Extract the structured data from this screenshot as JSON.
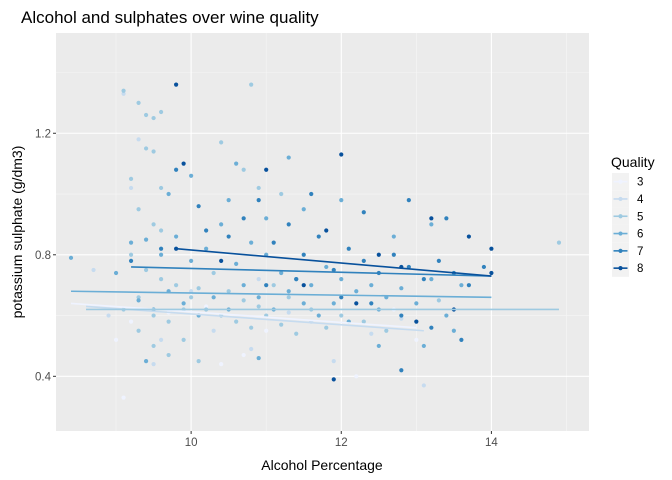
{
  "chart_data": {
    "type": "scatter",
    "title": "Alcohol and sulphates over wine quality",
    "xlabel": "Alcohol Percentage",
    "ylabel": "potassium sulphate (g/dm3)",
    "xlim": [
      8.2,
      15.3
    ],
    "ylim": [
      0.22,
      1.53
    ],
    "x_ticks": [
      10,
      12,
      14
    ],
    "y_ticks": [
      0.4,
      0.8,
      1.2
    ],
    "x_tick_labels": [
      "10",
      "12",
      "14"
    ],
    "y_tick_labels": [
      "0.4",
      "0.8",
      "1.2"
    ],
    "grid": true,
    "panel_background": "#ebebeb",
    "legend": {
      "title": "Quality",
      "position": "right",
      "labels": [
        "3",
        "4",
        "5",
        "6",
        "7",
        "8"
      ]
    },
    "series": [
      {
        "name": "3",
        "color": "#eff3ff",
        "points": [
          [
            9.0,
            0.52
          ],
          [
            9.2,
            0.58
          ],
          [
            9.7,
            0.61
          ],
          [
            10.2,
            0.63
          ],
          [
            10.7,
            0.47
          ],
          [
            11.0,
            0.55
          ],
          [
            12.2,
            0.4
          ],
          [
            12.7,
            0.62
          ],
          [
            13.0,
            0.52
          ],
          [
            9.1,
            0.33
          ],
          [
            10.4,
            0.44
          ]
        ],
        "trend": [
          [
            8.4,
            0.64
          ],
          [
            13.0,
            0.56
          ]
        ]
      },
      {
        "name": "4",
        "color": "#c6dbef",
        "points": [
          [
            8.7,
            0.75
          ],
          [
            8.9,
            0.6
          ],
          [
            9.1,
            1.33
          ],
          [
            9.3,
            1.18
          ],
          [
            9.6,
            0.52
          ],
          [
            10.0,
            0.68
          ],
          [
            10.3,
            0.55
          ],
          [
            10.8,
            0.49
          ],
          [
            11.3,
            0.61
          ],
          [
            11.9,
            0.45
          ],
          [
            12.4,
            0.54
          ],
          [
            13.1,
            0.37
          ],
          [
            9.2,
            1.02
          ],
          [
            10.9,
            0.72
          ],
          [
            12.8,
            0.59
          ],
          [
            9.5,
            0.44
          ],
          [
            11.6,
            0.58
          ]
        ],
        "trend": [
          [
            8.6,
            0.63
          ],
          [
            13.1,
            0.55
          ]
        ]
      },
      {
        "name": "5",
        "color": "#9ecae1",
        "points": [
          [
            9.1,
            1.34
          ],
          [
            9.3,
            1.3
          ],
          [
            9.4,
            1.26
          ],
          [
            9.5,
            1.25
          ],
          [
            9.6,
            1.27
          ],
          [
            9.4,
            1.15
          ],
          [
            9.5,
            1.14
          ],
          [
            9.2,
            1.05
          ],
          [
            9.3,
            0.95
          ],
          [
            9.6,
            1.02
          ],
          [
            9.5,
            0.9
          ],
          [
            9.6,
            0.88
          ],
          [
            10.8,
            1.36
          ],
          [
            10.4,
            1.17
          ],
          [
            10.7,
            1.08
          ],
          [
            10.9,
            1.02
          ],
          [
            11.2,
            1.0
          ],
          [
            9.2,
            0.8
          ],
          [
            9.4,
            0.75
          ],
          [
            9.6,
            0.72
          ],
          [
            9.8,
            0.7
          ],
          [
            10.0,
            0.66
          ],
          [
            10.2,
            0.62
          ],
          [
            10.4,
            0.6
          ],
          [
            10.6,
            0.58
          ],
          [
            10.8,
            0.56
          ],
          [
            11.0,
            0.6
          ],
          [
            11.2,
            0.57
          ],
          [
            11.4,
            0.54
          ],
          [
            11.6,
            0.62
          ],
          [
            11.8,
            0.56
          ],
          [
            12.0,
            0.6
          ],
          [
            12.3,
            0.58
          ],
          [
            12.6,
            0.55
          ],
          [
            9.3,
            0.55
          ],
          [
            9.5,
            0.5
          ],
          [
            9.7,
            0.47
          ],
          [
            9.9,
            0.52
          ],
          [
            10.1,
            0.45
          ],
          [
            9.1,
            0.62
          ],
          [
            9.3,
            0.66
          ],
          [
            9.5,
            0.6
          ],
          [
            9.7,
            0.58
          ],
          [
            9.9,
            0.62
          ],
          [
            10.1,
            0.69
          ],
          [
            10.3,
            0.74
          ],
          [
            10.5,
            0.68
          ],
          [
            10.7,
            0.65
          ],
          [
            10.9,
            0.63
          ],
          [
            11.1,
            0.7
          ],
          [
            11.3,
            0.66
          ],
          [
            14.9,
            0.84
          ],
          [
            13.3,
            0.65
          ]
        ],
        "trend": [
          [
            8.6,
            0.62
          ],
          [
            14.9,
            0.62
          ]
        ]
      },
      {
        "name": "6",
        "color": "#6baed6",
        "points": [
          [
            8.4,
            0.79
          ],
          [
            9.0,
            0.74
          ],
          [
            9.2,
            0.84
          ],
          [
            9.4,
            0.85
          ],
          [
            9.6,
            0.8
          ],
          [
            9.8,
            0.86
          ],
          [
            10.0,
            0.78
          ],
          [
            10.2,
            0.82
          ],
          [
            10.4,
            0.9
          ],
          [
            10.6,
            0.77
          ],
          [
            10.8,
            0.84
          ],
          [
            11.0,
            0.8
          ],
          [
            11.2,
            0.74
          ],
          [
            11.4,
            0.72
          ],
          [
            11.6,
            0.7
          ],
          [
            11.8,
            0.76
          ],
          [
            12.0,
            0.72
          ],
          [
            12.2,
            0.68
          ],
          [
            12.4,
            0.7
          ],
          [
            12.6,
            0.66
          ],
          [
            12.8,
            0.69
          ],
          [
            13.0,
            0.64
          ],
          [
            13.2,
            0.72
          ],
          [
            13.4,
            0.6
          ],
          [
            13.6,
            0.7
          ],
          [
            9.3,
            0.65
          ],
          [
            9.5,
            0.62
          ],
          [
            9.7,
            0.68
          ],
          [
            9.9,
            0.64
          ],
          [
            10.1,
            0.6
          ],
          [
            10.3,
            0.66
          ],
          [
            10.5,
            0.62
          ],
          [
            10.7,
            0.7
          ],
          [
            10.9,
            0.66
          ],
          [
            11.1,
            0.62
          ],
          [
            11.3,
            0.68
          ],
          [
            11.5,
            0.64
          ],
          [
            11.7,
            0.6
          ],
          [
            11.9,
            0.64
          ],
          [
            12.1,
            0.58
          ],
          [
            12.5,
            0.62
          ],
          [
            13.1,
            0.5
          ],
          [
            13.5,
            0.55
          ],
          [
            11.0,
            0.92
          ],
          [
            11.5,
            0.95
          ],
          [
            12.0,
            0.98
          ],
          [
            10.6,
            1.1
          ],
          [
            9.7,
            1.0
          ],
          [
            10.0,
            1.06
          ],
          [
            10.5,
            0.98
          ],
          [
            11.3,
            1.12
          ],
          [
            12.7,
            0.86
          ],
          [
            13.2,
            0.9
          ],
          [
            12.5,
            0.5
          ],
          [
            10.9,
            0.46
          ],
          [
            9.4,
            0.45
          ]
        ],
        "trend": [
          [
            8.4,
            0.68
          ],
          [
            14.0,
            0.66
          ]
        ]
      },
      {
        "name": "7",
        "color": "#3182bd",
        "points": [
          [
            9.2,
            0.78
          ],
          [
            9.6,
            0.82
          ],
          [
            9.8,
            1.08
          ],
          [
            10.2,
            0.88
          ],
          [
            10.5,
            0.86
          ],
          [
            10.7,
            0.92
          ],
          [
            10.9,
            0.98
          ],
          [
            11.1,
            0.84
          ],
          [
            11.3,
            0.9
          ],
          [
            11.5,
            0.8
          ],
          [
            11.7,
            0.86
          ],
          [
            11.9,
            0.75
          ],
          [
            12.1,
            0.82
          ],
          [
            12.3,
            0.78
          ],
          [
            12.5,
            0.74
          ],
          [
            12.7,
            0.8
          ],
          [
            12.9,
            0.76
          ],
          [
            13.1,
            0.72
          ],
          [
            13.3,
            0.78
          ],
          [
            13.5,
            0.74
          ],
          [
            13.7,
            0.7
          ],
          [
            13.9,
            0.76
          ],
          [
            11.0,
            0.7
          ],
          [
            11.4,
            0.72
          ],
          [
            12.0,
            0.66
          ],
          [
            12.4,
            0.64
          ],
          [
            12.8,
            0.6
          ],
          [
            13.2,
            0.56
          ],
          [
            13.6,
            0.52
          ],
          [
            12.8,
            0.42
          ],
          [
            12.3,
            0.94
          ],
          [
            11.6,
            1.0
          ],
          [
            12.9,
            0.98
          ],
          [
            13.4,
            0.92
          ],
          [
            10.1,
            0.96
          ]
        ],
        "trend": [
          [
            9.2,
            0.76
          ],
          [
            14.0,
            0.73
          ]
        ]
      },
      {
        "name": "8",
        "color": "#08519c",
        "points": [
          [
            9.8,
            1.36
          ],
          [
            9.9,
            1.1
          ],
          [
            11.0,
            1.08
          ],
          [
            12.0,
            1.13
          ],
          [
            11.8,
            0.88
          ],
          [
            13.2,
            0.92
          ],
          [
            12.5,
            0.8
          ],
          [
            12.8,
            0.76
          ],
          [
            14.0,
            0.82
          ],
          [
            14.0,
            0.74
          ],
          [
            11.5,
            0.7
          ],
          [
            10.4,
            0.78
          ],
          [
            13.7,
            0.86
          ],
          [
            12.2,
            0.64
          ],
          [
            13.0,
            0.58
          ],
          [
            9.8,
            0.82
          ],
          [
            13.5,
            0.62
          ],
          [
            11.9,
            0.39
          ]
        ],
        "trend": [
          [
            9.8,
            0.82
          ],
          [
            14.0,
            0.73
          ]
        ]
      }
    ]
  }
}
